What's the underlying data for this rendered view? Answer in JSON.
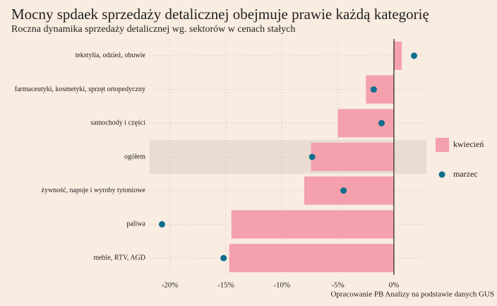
{
  "chart_data": {
    "type": "bar",
    "orientation": "horizontal",
    "title": "Mocny spdaek sprzedaży detalicznej obejmuje prawie każdą kategorię",
    "subtitle": "Roczna dynamika sprzedaży detalicznej wg. sektorów w cenach stałych",
    "source": "Opracowanie PB Analizy na podstawie danych GUS",
    "categories": [
      "tekstylia, odzież, obuwie",
      "farmaceutyki, kosmetyki, sprzęt ortopedyczny",
      "samochody i części",
      "ogółem",
      "żywność, napoje i wyroby tytoniowe",
      "paliwa",
      "meble, RTV, AGD"
    ],
    "series": [
      {
        "name": "kwiecień",
        "mark": "bar",
        "color": "#f4a0ad",
        "values": [
          0.7,
          -2.5,
          -5.0,
          -7.4,
          -8.0,
          -14.5,
          -14.7
        ]
      },
      {
        "name": "marzec",
        "mark": "dot",
        "color": "#0e6e8e",
        "values": [
          1.8,
          -1.8,
          -1.1,
          -7.3,
          -4.5,
          -20.7,
          -15.2
        ]
      }
    ],
    "xlim": [
      -21.8,
      2.9
    ],
    "xticks": [
      {
        "value": -20,
        "label": "-20%"
      },
      {
        "value": -15,
        "label": "-15%"
      },
      {
        "value": -10,
        "label": "-10%"
      },
      {
        "value": -5,
        "label": "-5%"
      },
      {
        "value": 0,
        "label": "0%"
      }
    ],
    "highlight": 3,
    "grid": true,
    "legend": "right"
  }
}
